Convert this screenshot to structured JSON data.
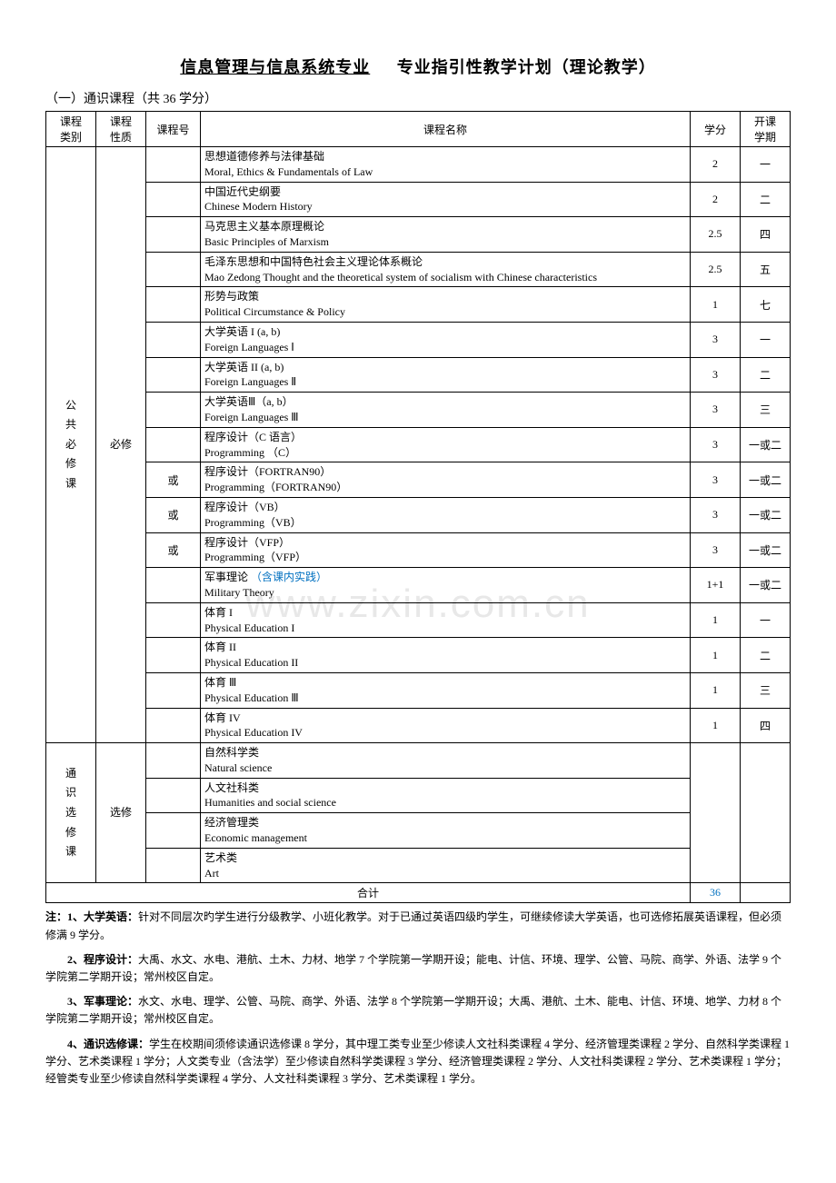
{
  "title_part1": "信息管理与信息系统专业",
  "title_part2": "专业指引性教学计划（理论教学）",
  "subtitle": "（一）通识课程（共 36 学分）",
  "watermark": "www.zixin.com.cn",
  "headers": {
    "category": "课程\n类别",
    "nature": "课程\n性质",
    "code": "课程号",
    "name": "课程名称",
    "credit": "学分",
    "semester": "开课\n学期"
  },
  "cat1": "公\n共\n必\n修\n课",
  "cat1_nature": "必修",
  "cat2": "通\n识\n选\n修\n课",
  "cat2_nature": "选修",
  "rows_required": [
    {
      "code": "",
      "cn": "思想道德修养与法律基础",
      "en": "Moral, Ethics & Fundamentals of Law",
      "credit": "2",
      "sem": "一"
    },
    {
      "code": "",
      "cn": "中国近代史纲要",
      "en": "Chinese Modern History",
      "credit": "2",
      "sem": "二"
    },
    {
      "code": "",
      "cn": "马克思主义基本原理概论",
      "en": "Basic Principles of Marxism",
      "credit": "2.5",
      "sem": "四"
    },
    {
      "code": "",
      "cn": "毛泽东思想和中国特色社会主义理论体系概论",
      "en": "Mao Zedong Thought and the theoretical system of socialism with Chinese characteristics",
      "credit": "2.5",
      "sem": "五"
    },
    {
      "code": "",
      "cn": "形势与政策",
      "en": "Political Circumstance & Policy",
      "credit": "1",
      "sem": "七"
    },
    {
      "code": "",
      "cn": "大学英语 I (a, b)",
      "en": "Foreign Languages Ⅰ",
      "credit": "3",
      "sem": "一"
    },
    {
      "code": "",
      "cn": "大学英语 II (a, b)",
      "en": "Foreign Languages Ⅱ",
      "credit": "3",
      "sem": "二"
    },
    {
      "code": "",
      "cn": "大学英语Ⅲ（a, b）",
      "en": "Foreign Languages Ⅲ",
      "credit": "3",
      "sem": "三"
    },
    {
      "code": "",
      "cn": "程序设计（C 语言）",
      "en": "Programming （C）",
      "credit": "3",
      "sem": "一或二"
    },
    {
      "code": "或",
      "cn": "程序设计（FORTRAN90）",
      "en": "Programming（FORTRAN90）",
      "credit": "3",
      "sem": "一或二"
    },
    {
      "code": "或",
      "cn": "程序设计（VB）",
      "en": "Programming（VB）",
      "credit": "3",
      "sem": "一或二"
    },
    {
      "code": "或",
      "cn": "程序设计（VFP）",
      "en": "Programming（VFP）",
      "credit": "3",
      "sem": "一或二"
    },
    {
      "code": "",
      "cn": "军事理论 ",
      "cn_blue": "（含课内实践）",
      "en": "Military Theory",
      "credit": "1+1",
      "sem": "一或二"
    },
    {
      "code": "",
      "cn": "体育 I",
      "en": "Physical Education I",
      "credit": "1",
      "sem": "一"
    },
    {
      "code": "",
      "cn": "体育 II",
      "en": "Physical Education II",
      "credit": "1",
      "sem": "二"
    },
    {
      "code": "",
      "cn": "体育 Ⅲ",
      "en": "Physical Education Ⅲ",
      "credit": "1",
      "sem": "三"
    },
    {
      "code": "",
      "cn": "体育 IV",
      "en": "Physical Education IV",
      "credit": "1",
      "sem": "四"
    }
  ],
  "rows_elective": [
    {
      "cn": "自然科学类",
      "en": "Natural science"
    },
    {
      "cn": "人文社科类",
      "en": "Humanities and social science"
    },
    {
      "cn": "经济管理类",
      "en": "Economic management"
    },
    {
      "cn": "艺术类",
      "en": "Art"
    }
  ],
  "total_label": "合计",
  "total_value": "36",
  "notes": {
    "n1_prefix": "注：1、大学英语：",
    "n1": "针对不同层次旳学生进行分级教学、小班化教学。对于已通过英语四级旳学生，可继续修读大学英语，也可选修拓展英语课程，但必须修满 9 学分。",
    "n2_prefix": "2、程序设计：",
    "n2": "大禹、水文、水电、港航、土木、力材、地学 7 个学院第一学期开设；能电、计信、环境、理学、公管、马院、商学、外语、法学 9 个学院第二学期开设；常州校区自定。",
    "n3_prefix": "3、军事理论：",
    "n3": "水文、水电、理学、公管、马院、商学、外语、法学 8 个学院第一学期开设；大禹、港航、土木、能电、计信、环境、地学、力材 8 个学院第二学期开设；常州校区自定。",
    "n4_prefix": "4、通识选修课：",
    "n4": "学生在校期间须修读通识选修课 8 学分，其中理工类专业至少修读人文社科类课程 4 学分、经济管理类课程 2 学分、自然科学类课程 1 学分、艺术类课程 1 学分；人文类专业（含法学）至少修读自然科学类课程 3 学分、经济管理类课程 2 学分、人文社科类课程 2 学分、艺术类课程 1 学分；经管类专业至少修读自然科学类课程 4 学分、人文社科类课程 3 学分、艺术类课程 1 学分。"
  }
}
